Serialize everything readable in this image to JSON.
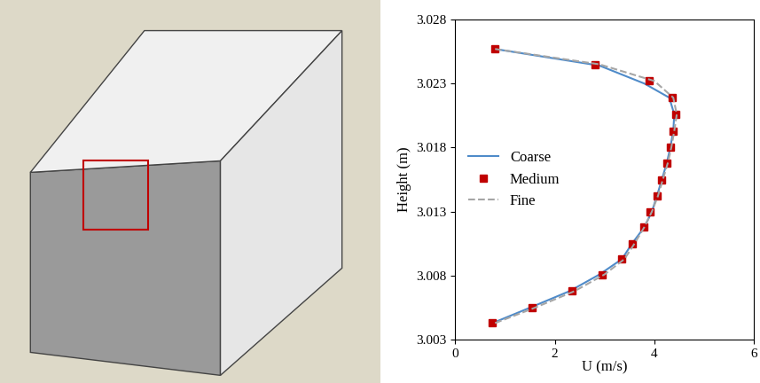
{
  "chart_data": {
    "type": "line",
    "xlabel": "U (m/s)",
    "ylabel": "Height (m)",
    "xlim": [
      0,
      6
    ],
    "xticks": [
      0,
      2,
      4,
      6
    ],
    "ylim": [
      3.003,
      3.028
    ],
    "yticks": [
      3.003,
      3.008,
      3.013,
      3.018,
      3.023,
      3.028
    ],
    "legend": "center left",
    "series": [
      {
        "name": "Coarse",
        "color": "#4f8bc9",
        "line_style": "solid",
        "marker": "none",
        "x": [
          0.75,
          1.5,
          2.3,
          2.9,
          3.35,
          3.55,
          3.8,
          3.95,
          4.05,
          4.15,
          4.25,
          4.32,
          4.38,
          4.4,
          4.3,
          3.8,
          2.9,
          0.8
        ],
        "values": [
          3.0043,
          3.0055,
          3.0068,
          3.0081,
          3.0093,
          3.0105,
          3.0118,
          3.013,
          3.0142,
          3.0155,
          3.0168,
          3.018,
          3.0193,
          3.0206,
          3.0219,
          3.023,
          3.0244,
          3.0257
        ]
      },
      {
        "name": "Medium",
        "color": "#c00000",
        "line_style": "none",
        "marker": "square",
        "x": [
          0.75,
          1.55,
          2.35,
          2.95,
          3.35,
          3.55,
          3.78,
          3.92,
          4.05,
          4.15,
          4.25,
          4.32,
          4.38,
          4.43,
          4.35,
          3.9,
          2.8,
          0.8
        ],
        "values": [
          3.0043,
          3.0055,
          3.0068,
          3.0081,
          3.0093,
          3.0105,
          3.0118,
          3.013,
          3.0142,
          3.0155,
          3.0168,
          3.018,
          3.0193,
          3.0206,
          3.0219,
          3.0232,
          3.0245,
          3.0257
        ]
      },
      {
        "name": "Fine",
        "color": "#a6a6a6",
        "line_style": "dashed",
        "marker": "none",
        "x": [
          0.8,
          1.6,
          2.4,
          3.0,
          3.4,
          3.6,
          3.8,
          3.95,
          4.07,
          4.17,
          4.27,
          4.34,
          4.4,
          4.45,
          4.38,
          4.0,
          2.9,
          0.8
        ],
        "values": [
          3.0043,
          3.0055,
          3.0068,
          3.0081,
          3.0093,
          3.0105,
          3.0118,
          3.013,
          3.0142,
          3.0155,
          3.0168,
          3.018,
          3.0193,
          3.0206,
          3.0219,
          3.0232,
          3.0245,
          3.0257
        ]
      }
    ]
  }
}
